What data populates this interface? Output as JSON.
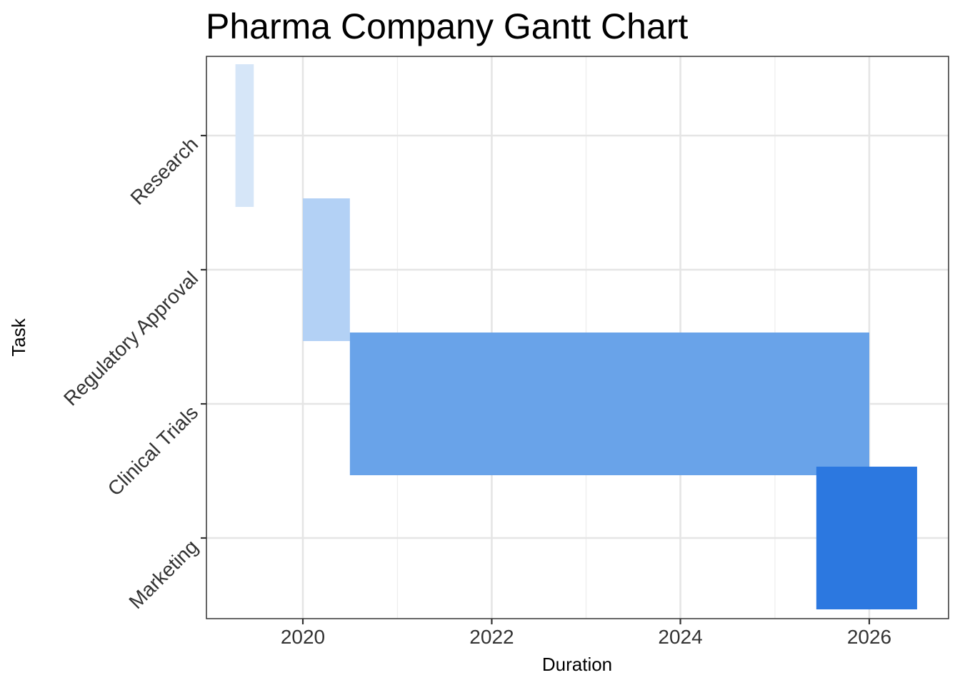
{
  "chart_data": {
    "type": "gantt",
    "title": "Pharma Company Gantt Chart",
    "xlabel": "Duration",
    "ylabel": "Task",
    "x_ticks": [
      "2020",
      "2022",
      "2024",
      "2026"
    ],
    "xlim": [
      "2019-01-01",
      "2026-10-01"
    ],
    "grid": true,
    "legend": "none",
    "tasks": [
      {
        "name": "Research",
        "start": "2019-04-15",
        "end": "2019-06-25",
        "color": "#d6e6f8"
      },
      {
        "name": "Regulatory Approval",
        "start": "2020-01-01",
        "end": "2020-07-01",
        "color": "#b3d1f5"
      },
      {
        "name": "Clinical Trials",
        "start": "2020-07-01",
        "end": "2026-01-01",
        "color": "#69a3e9"
      },
      {
        "name": "Marketing",
        "start": "2025-06-10",
        "end": "2026-07-05",
        "color": "#2c78e0"
      }
    ]
  }
}
